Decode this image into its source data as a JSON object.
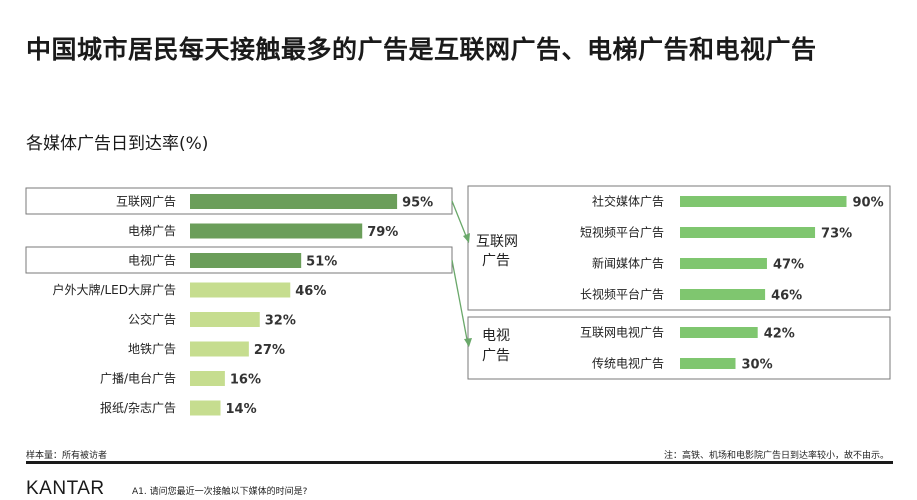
{
  "title": "中国城市居民每天接触最多的广告是互联网广告、电梯广告和电视广告",
  "chart_data": {
    "type": "bar",
    "title": "各媒体广告日到达率(%)",
    "colors": {
      "dark": "#6b9e5a",
      "light": "#c6dd8f",
      "sub": "#7fc66f",
      "connector": "#6aa86a",
      "frame": "#7a7a7a"
    },
    "main": {
      "categories": [
        "互联网广告",
        "电梯广告",
        "电视广告",
        "户外大牌/LED大屏广告",
        "公交广告",
        "地铁广告",
        "广播/电台广告",
        "报纸/杂志广告"
      ],
      "values": [
        95,
        79,
        51,
        46,
        32,
        27,
        16,
        14
      ],
      "value_labels": [
        "95%",
        "79%",
        "51%",
        "46%",
        "32%",
        "27%",
        "16%",
        "14%"
      ]
    },
    "internet_breakdown": {
      "group_label": [
        "互联网",
        "广告"
      ],
      "categories": [
        "社交媒体广告",
        "短视频平台广告",
        "新闻媒体广告",
        "长视频平台广告"
      ],
      "values": [
        90,
        73,
        47,
        46
      ],
      "value_labels": [
        "90%",
        "73%",
        "47%",
        "46%"
      ]
    },
    "tv_breakdown": {
      "group_label": [
        "电视",
        "广告"
      ],
      "categories": [
        "互联网电视广告",
        "传统电视广告"
      ],
      "values": [
        42,
        30
      ],
      "value_labels": [
        "42%",
        "30%"
      ]
    }
  },
  "footer": {
    "sample": "样本量：所有被访者",
    "note": "注：高铁、机场和电影院广告日到达率较小，故不由示。",
    "brand": "KANTAR",
    "question": "A1. 请问您最近一次接触以下媒体的时间是?"
  }
}
